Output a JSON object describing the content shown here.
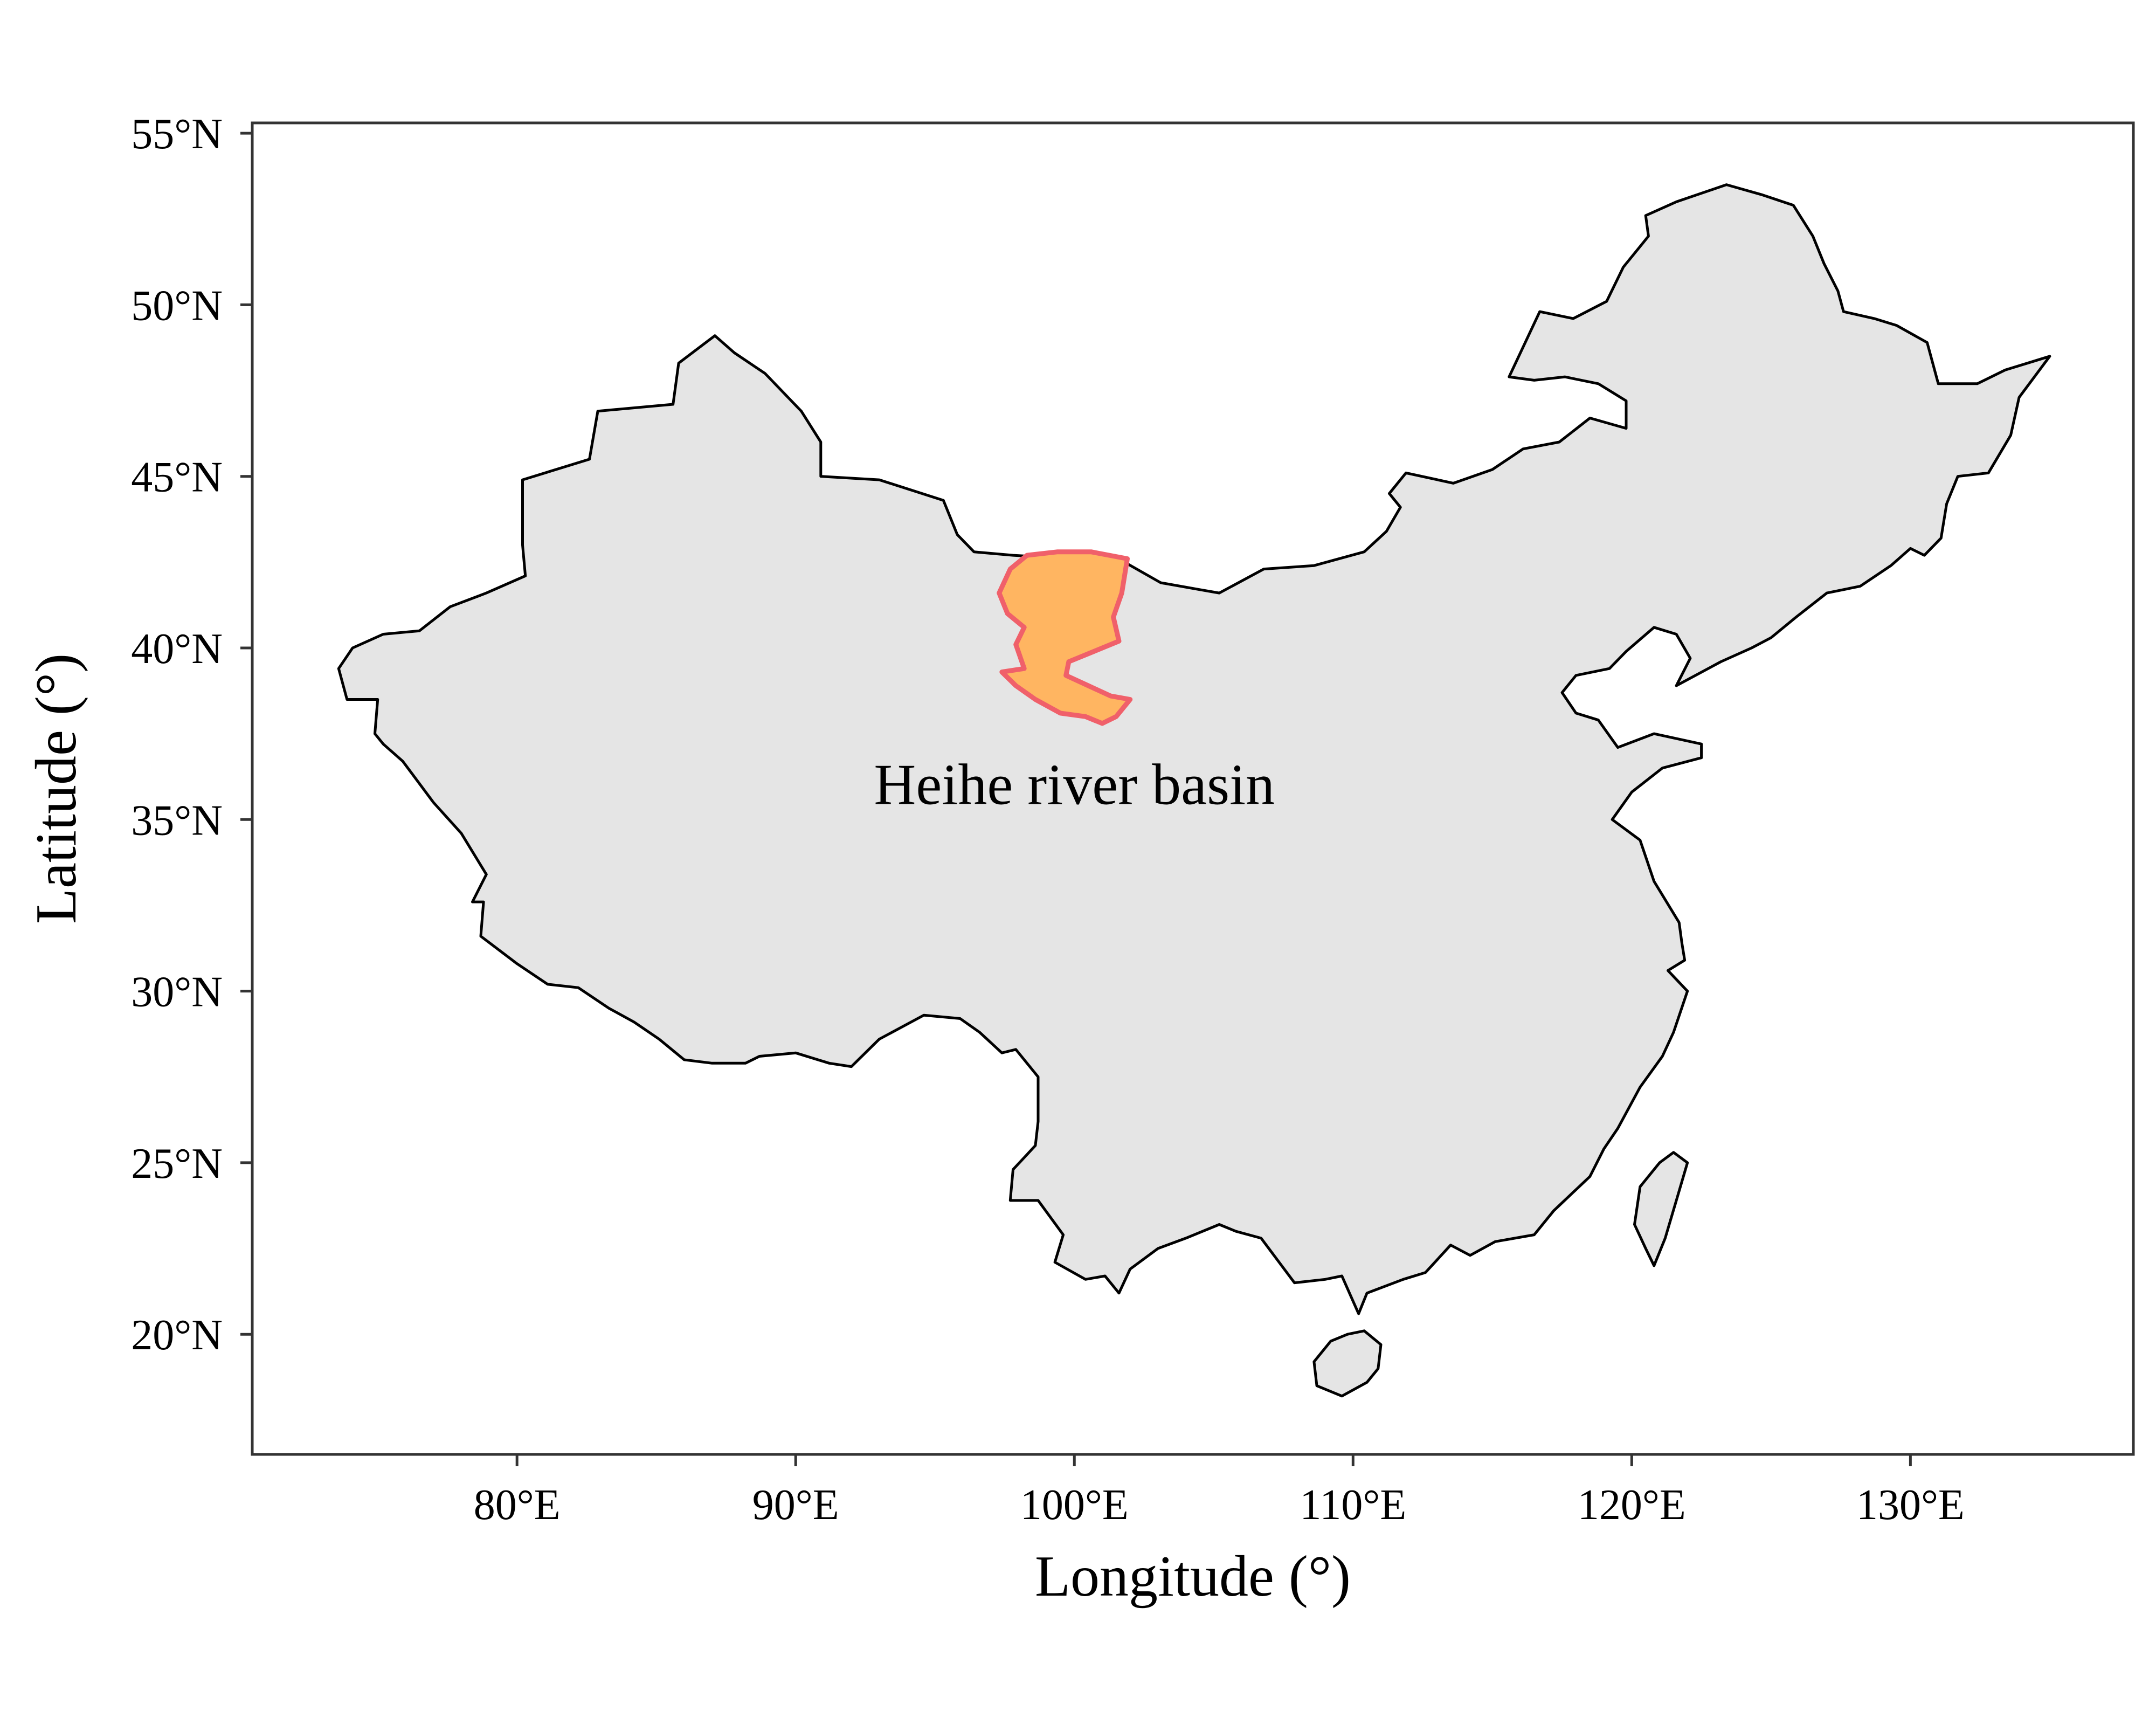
{
  "map": {
    "xlabel": "Longitude (°)",
    "ylabel": "Latitude (°)",
    "xlim": [
      70.5,
      138.0
    ],
    "ylim": [
      16.5,
      55.3
    ],
    "x_ticks": [
      {
        "value": 80,
        "label": "80°E"
      },
      {
        "value": 90,
        "label": "90°E"
      },
      {
        "value": 100,
        "label": "100°E"
      },
      {
        "value": 110,
        "label": "110°E"
      },
      {
        "value": 120,
        "label": "120°E"
      },
      {
        "value": 130,
        "label": "130°E"
      }
    ],
    "y_ticks": [
      {
        "value": 20,
        "label": "20°N"
      },
      {
        "value": 25,
        "label": "25°N"
      },
      {
        "value": 30,
        "label": "30°N"
      },
      {
        "value": 35,
        "label": "35°N"
      },
      {
        "value": 40,
        "label": "40°N"
      },
      {
        "value": 45,
        "label": "45°N"
      },
      {
        "value": 50,
        "label": "50°N"
      },
      {
        "value": 55,
        "label": "55°N"
      }
    ],
    "grid": false,
    "colors": {
      "land_fill": "#e5e5e5",
      "land_stroke": "#000000",
      "basin_fill": "#ffb561",
      "basin_stroke": "#f0606a",
      "frame": "#333333"
    },
    "annotation": {
      "text": "Heihe river basin",
      "lon": 100.0,
      "lat": 36.0
    },
    "regions": [
      {
        "name": "mainland",
        "coords": [
          [
            73.6,
            39.4
          ],
          [
            74.1,
            40.0
          ],
          [
            75.2,
            40.4
          ],
          [
            76.5,
            40.5
          ],
          [
            77.6,
            41.2
          ],
          [
            78.9,
            41.6
          ],
          [
            80.3,
            42.1
          ],
          [
            80.2,
            43.0
          ],
          [
            80.2,
            44.9
          ],
          [
            82.6,
            45.5
          ],
          [
            82.9,
            46.9
          ],
          [
            85.6,
            47.1
          ],
          [
            85.8,
            48.3
          ],
          [
            87.1,
            49.1
          ],
          [
            87.8,
            48.6
          ],
          [
            88.9,
            48.0
          ],
          [
            90.2,
            46.9
          ],
          [
            90.9,
            46.0
          ],
          [
            90.9,
            45.0
          ],
          [
            93.0,
            44.9
          ],
          [
            95.3,
            44.3
          ],
          [
            95.8,
            43.3
          ],
          [
            96.4,
            42.8
          ],
          [
            97.8,
            42.7
          ],
          [
            100.0,
            42.6
          ],
          [
            101.8,
            42.5
          ],
          [
            103.1,
            41.9
          ],
          [
            104.5,
            41.7
          ],
          [
            105.2,
            41.6
          ],
          [
            106.8,
            42.3
          ],
          [
            108.6,
            42.4
          ],
          [
            110.4,
            42.8
          ],
          [
            111.2,
            43.4
          ],
          [
            111.7,
            44.1
          ],
          [
            111.3,
            44.5
          ],
          [
            111.9,
            45.1
          ],
          [
            113.6,
            44.8
          ],
          [
            115.0,
            45.2
          ],
          [
            116.1,
            45.8
          ],
          [
            117.4,
            46.0
          ],
          [
            118.5,
            46.7
          ],
          [
            119.8,
            46.4
          ],
          [
            119.8,
            47.2
          ],
          [
            118.8,
            47.7
          ],
          [
            117.6,
            47.9
          ],
          [
            116.5,
            47.8
          ],
          [
            115.6,
            47.9
          ],
          [
            116.7,
            49.8
          ],
          [
            117.9,
            49.6
          ],
          [
            119.1,
            50.1
          ],
          [
            119.7,
            51.1
          ],
          [
            120.6,
            52.0
          ],
          [
            120.5,
            52.6
          ],
          [
            121.6,
            53.0
          ],
          [
            123.4,
            53.5
          ],
          [
            124.7,
            53.2
          ],
          [
            125.8,
            52.9
          ],
          [
            126.5,
            52.0
          ],
          [
            126.9,
            51.2
          ],
          [
            127.4,
            50.4
          ],
          [
            127.6,
            49.8
          ],
          [
            128.7,
            49.6
          ],
          [
            129.5,
            49.4
          ],
          [
            130.6,
            48.9
          ],
          [
            131.0,
            47.7
          ],
          [
            132.4,
            47.7
          ],
          [
            133.4,
            48.1
          ],
          [
            134.6,
            48.4
          ],
          [
            135.0,
            48.5
          ],
          [
            133.9,
            47.3
          ],
          [
            133.6,
            46.2
          ],
          [
            132.8,
            45.1
          ],
          [
            131.7,
            45.0
          ],
          [
            131.3,
            44.2
          ],
          [
            131.1,
            43.2
          ],
          [
            130.5,
            42.7
          ],
          [
            130.0,
            42.9
          ],
          [
            129.3,
            42.4
          ],
          [
            128.2,
            41.8
          ],
          [
            127.0,
            41.6
          ],
          [
            125.9,
            40.9
          ],
          [
            125.0,
            40.3
          ],
          [
            124.3,
            40.0
          ],
          [
            123.2,
            39.6
          ],
          [
            121.6,
            38.9
          ],
          [
            122.1,
            39.7
          ],
          [
            121.6,
            40.4
          ],
          [
            120.8,
            40.6
          ],
          [
            119.8,
            39.9
          ],
          [
            119.2,
            39.4
          ],
          [
            118.0,
            39.2
          ],
          [
            117.5,
            38.7
          ],
          [
            118.0,
            38.1
          ],
          [
            118.8,
            37.9
          ],
          [
            119.5,
            37.1
          ],
          [
            120.8,
            37.5
          ],
          [
            122.5,
            37.2
          ],
          [
            122.5,
            36.8
          ],
          [
            121.1,
            36.5
          ],
          [
            120.0,
            35.8
          ],
          [
            119.3,
            35.0
          ],
          [
            120.3,
            34.4
          ],
          [
            120.8,
            33.2
          ],
          [
            121.7,
            32.0
          ],
          [
            121.8,
            31.4
          ],
          [
            121.9,
            30.9
          ],
          [
            121.3,
            30.6
          ],
          [
            122.0,
            30.0
          ],
          [
            121.5,
            28.8
          ],
          [
            121.1,
            28.1
          ],
          [
            120.3,
            27.2
          ],
          [
            119.5,
            26.0
          ],
          [
            119.0,
            25.4
          ],
          [
            118.5,
            24.6
          ],
          [
            117.2,
            23.6
          ],
          [
            116.5,
            22.9
          ],
          [
            115.1,
            22.7
          ],
          [
            114.2,
            22.3
          ],
          [
            113.5,
            22.6
          ],
          [
            112.6,
            21.8
          ],
          [
            111.8,
            21.6
          ],
          [
            110.5,
            21.2
          ],
          [
            110.2,
            20.6
          ],
          [
            109.6,
            21.7
          ],
          [
            109.0,
            21.6
          ],
          [
            107.9,
            21.5
          ],
          [
            106.7,
            22.8
          ],
          [
            105.8,
            23.0
          ],
          [
            105.2,
            23.2
          ],
          [
            104.0,
            22.8
          ],
          [
            103.0,
            22.5
          ],
          [
            102.0,
            21.9
          ],
          [
            101.6,
            21.2
          ],
          [
            101.1,
            21.7
          ],
          [
            100.4,
            21.6
          ],
          [
            99.3,
            22.1
          ],
          [
            99.6,
            22.9
          ],
          [
            98.7,
            23.9
          ],
          [
            97.7,
            23.9
          ],
          [
            97.8,
            24.8
          ],
          [
            98.6,
            25.5
          ],
          [
            98.7,
            26.2
          ],
          [
            98.7,
            27.5
          ],
          [
            97.9,
            28.3
          ],
          [
            97.4,
            28.2
          ],
          [
            96.6,
            28.8
          ],
          [
            95.9,
            29.2
          ],
          [
            94.6,
            29.3
          ],
          [
            93.0,
            28.6
          ],
          [
            92.0,
            27.8
          ],
          [
            91.2,
            27.9
          ],
          [
            90.0,
            28.2
          ],
          [
            88.7,
            28.1
          ],
          [
            88.2,
            27.9
          ],
          [
            87.0,
            27.9
          ],
          [
            86.0,
            28.0
          ],
          [
            85.1,
            28.6
          ],
          [
            84.2,
            29.1
          ],
          [
            83.3,
            29.5
          ],
          [
            82.2,
            30.1
          ],
          [
            81.1,
            30.2
          ],
          [
            80.0,
            30.8
          ],
          [
            78.7,
            31.6
          ],
          [
            78.8,
            32.6
          ],
          [
            78.4,
            32.6
          ],
          [
            78.9,
            33.4
          ],
          [
            78.0,
            34.6
          ],
          [
            77.0,
            35.5
          ],
          [
            75.9,
            36.7
          ],
          [
            75.2,
            37.2
          ],
          [
            74.9,
            37.5
          ],
          [
            75.0,
            38.5
          ],
          [
            73.9,
            38.5
          ],
          [
            73.6,
            39.4
          ]
        ]
      },
      {
        "name": "taiwan",
        "coords": [
          [
            121.5,
            25.3
          ],
          [
            122.0,
            25.0
          ],
          [
            121.6,
            23.9
          ],
          [
            121.2,
            22.8
          ],
          [
            120.8,
            22.0
          ],
          [
            120.5,
            22.5
          ],
          [
            120.1,
            23.2
          ],
          [
            120.3,
            24.3
          ],
          [
            121.0,
            25.0
          ],
          [
            121.5,
            25.3
          ]
        ]
      },
      {
        "name": "hainan",
        "coords": [
          [
            110.4,
            20.1
          ],
          [
            111.0,
            19.7
          ],
          [
            110.9,
            19.0
          ],
          [
            110.5,
            18.6
          ],
          [
            109.6,
            18.2
          ],
          [
            108.7,
            18.5
          ],
          [
            108.6,
            19.2
          ],
          [
            109.2,
            19.8
          ],
          [
            109.8,
            20.0
          ],
          [
            110.4,
            20.1
          ]
        ]
      },
      {
        "name": "heihe-river-basin",
        "coords": [
          [
            97.3,
            41.6
          ],
          [
            97.7,
            42.3
          ],
          [
            98.3,
            42.7
          ],
          [
            99.4,
            42.8
          ],
          [
            100.6,
            42.8
          ],
          [
            101.9,
            42.6
          ],
          [
            101.7,
            41.6
          ],
          [
            101.4,
            40.9
          ],
          [
            101.6,
            40.2
          ],
          [
            100.7,
            39.9
          ],
          [
            99.8,
            39.6
          ],
          [
            99.7,
            39.2
          ],
          [
            100.5,
            38.9
          ],
          [
            101.3,
            38.6
          ],
          [
            102.0,
            38.5
          ],
          [
            101.5,
            38.0
          ],
          [
            101.0,
            37.8
          ],
          [
            100.4,
            38.0
          ],
          [
            99.5,
            38.1
          ],
          [
            98.6,
            38.5
          ],
          [
            97.9,
            38.9
          ],
          [
            97.4,
            39.3
          ],
          [
            98.2,
            39.4
          ],
          [
            97.9,
            40.1
          ],
          [
            98.2,
            40.6
          ],
          [
            97.6,
            41.0
          ],
          [
            97.3,
            41.6
          ]
        ]
      }
    ]
  }
}
